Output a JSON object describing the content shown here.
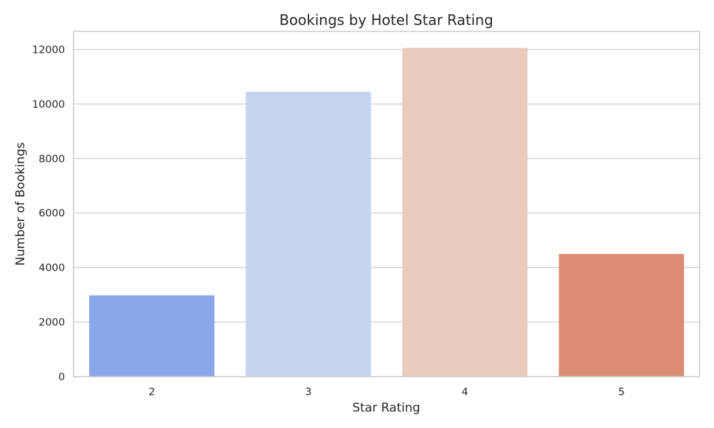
{
  "chart_data": {
    "type": "bar",
    "title": "Bookings by Hotel Star Rating",
    "xlabel": "Star Rating",
    "ylabel": "Number of Bookings",
    "categories": [
      "2",
      "3",
      "4",
      "5"
    ],
    "values": [
      2980,
      10450,
      12060,
      4500
    ],
    "colors": [
      "#8aa7ea",
      "#c6d4f0",
      "#e9ccbe",
      "#dd8c76"
    ],
    "ylim": [
      0,
      12665
    ],
    "yticks": [
      0,
      2000,
      4000,
      6000,
      8000,
      10000,
      12000
    ],
    "grid": true,
    "grid_axis": "y",
    "legend": "none"
  }
}
